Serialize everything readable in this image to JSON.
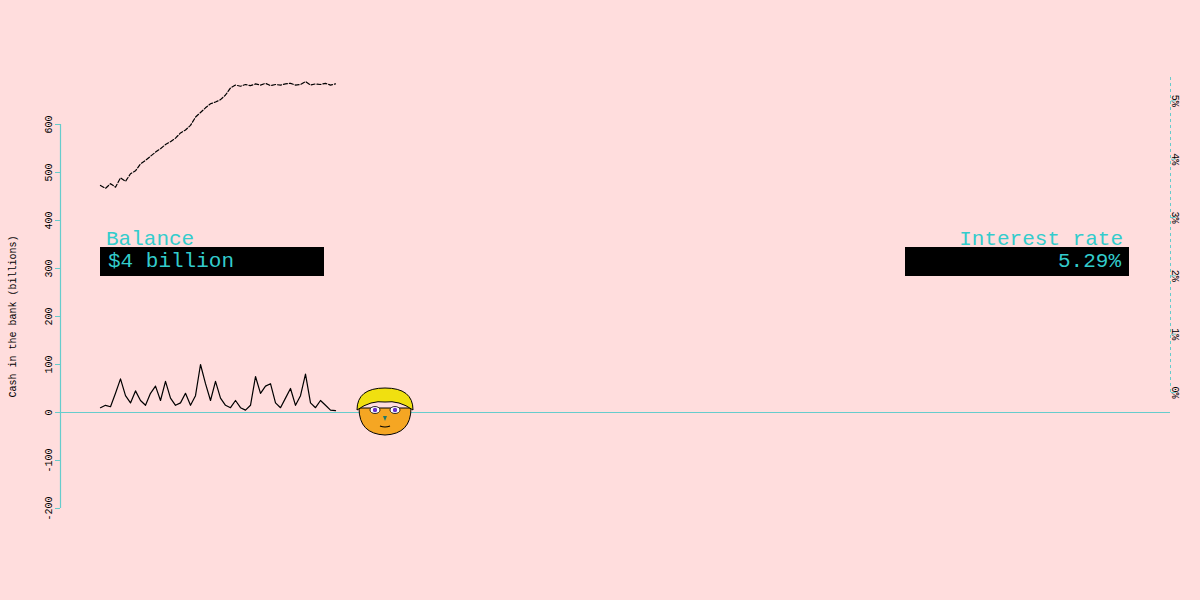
{
  "chart_data": {
    "type": "line",
    "y_label": "Cash in the bank (billions)",
    "x": [
      0,
      1,
      2,
      3,
      4,
      5,
      6,
      7,
      8,
      9,
      10,
      11,
      12,
      13,
      14,
      15,
      16,
      17,
      18,
      19,
      20,
      21,
      22,
      23,
      24,
      25,
      26,
      27,
      28,
      29,
      30,
      31,
      32,
      33,
      34,
      35,
      36,
      37,
      38,
      39,
      40,
      41,
      42,
      43,
      44,
      45,
      46,
      47
    ],
    "series": [
      {
        "name": "Balance",
        "color": "#000000",
        "line_style": "solid",
        "values": [
          10,
          15,
          12,
          40,
          70,
          35,
          20,
          45,
          25,
          15,
          40,
          55,
          25,
          65,
          30,
          15,
          20,
          40,
          15,
          35,
          100,
          60,
          25,
          65,
          30,
          15,
          10,
          25,
          10,
          5,
          15,
          75,
          40,
          55,
          60,
          20,
          10,
          30,
          50,
          15,
          35,
          80,
          20,
          10,
          25,
          15,
          5,
          4
        ]
      },
      {
        "name": "Interest rate",
        "color": "#000000",
        "line_style": "dashed",
        "axis": "y2",
        "values": [
          3.55,
          3.5,
          3.58,
          3.52,
          3.68,
          3.62,
          3.75,
          3.8,
          3.92,
          3.98,
          4.05,
          4.12,
          4.18,
          4.25,
          4.3,
          4.36,
          4.45,
          4.5,
          4.58,
          4.72,
          4.8,
          4.88,
          4.95,
          4.98,
          5.02,
          5.1,
          5.22,
          5.27,
          5.25,
          5.28,
          5.26,
          5.29,
          5.27,
          5.3,
          5.26,
          5.28,
          5.27,
          5.29,
          5.3,
          5.27,
          5.28,
          5.33,
          5.27,
          5.29,
          5.28,
          5.3,
          5.27,
          5.29
        ]
      }
    ],
    "xlim": [
      -8,
      214
    ],
    "ylim": [
      -200,
      600
    ],
    "yticks": [
      -200,
      -100,
      0,
      100,
      200,
      300,
      400,
      500,
      600
    ],
    "y2lim": [
      0,
      5.4
    ],
    "y2ticks": [
      {
        "value": 0,
        "label": "0%"
      },
      {
        "value": 1,
        "label": "1%"
      },
      {
        "value": 2,
        "label": "2%"
      },
      {
        "value": 3,
        "label": "3%"
      },
      {
        "value": 4,
        "label": "4%"
      },
      {
        "value": 5,
        "label": "5%"
      }
    ],
    "tick_labels": "y",
    "annotations": [
      {
        "title": "Balance",
        "text": "$4 billion"
      },
      {
        "title": "Interest rate",
        "text": "5.29%"
      }
    ]
  }
}
